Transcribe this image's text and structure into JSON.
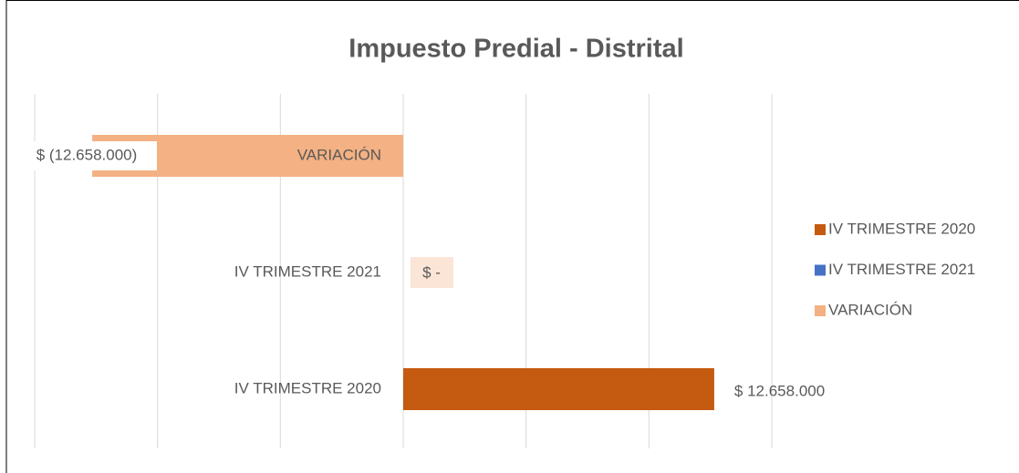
{
  "chart_data": {
    "type": "bar",
    "orientation": "horizontal",
    "title": "Impuesto Predial - Distrital",
    "categories": [
      "IV TRIMESTRE 2020",
      "IV TRIMESTRE 2021",
      "VARIACIÓN"
    ],
    "values": [
      12658000,
      0,
      -12658000
    ],
    "value_labels": [
      "$ 12.658.000",
      "$ -",
      "$ (12.658.000)"
    ],
    "colors": [
      "#c55a11",
      "#4472c4",
      "#f4b183"
    ],
    "xlim": [
      -15000000,
      15000000
    ],
    "xticks": [
      -15000000,
      -10000000,
      -5000000,
      0,
      5000000,
      10000000,
      15000000
    ],
    "grid": true,
    "legend": "right"
  }
}
